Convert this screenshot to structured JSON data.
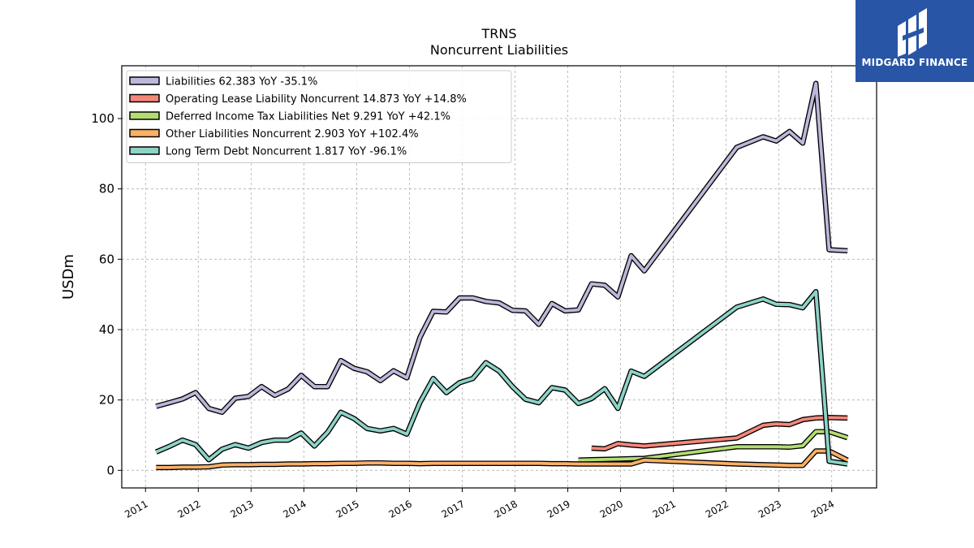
{
  "chart_data": {
    "type": "line",
    "title": "TRNS",
    "subtitle": "Noncurrent  Liabilities",
    "ylabel": "USDm",
    "xlabel": "",
    "xlim": [
      2010.55,
      2024.85
    ],
    "ylim": [
      -5,
      115
    ],
    "yticks": [
      0,
      20,
      40,
      60,
      80,
      100
    ],
    "xticks": [
      "2011",
      "2012",
      "2013",
      "2014",
      "2015",
      "2016",
      "2017",
      "2018",
      "2019",
      "2020",
      "2021",
      "2022",
      "2023",
      "2024"
    ],
    "grid": true,
    "legend_position": "top-left",
    "series": [
      {
        "name": "Liabilities  62.383 YoY -35.1%",
        "color": "#bcb8db",
        "x": [
          2011.2,
          2011.45,
          2011.7,
          2011.95,
          2012.2,
          2012.45,
          2012.7,
          2012.95,
          2013.2,
          2013.45,
          2013.7,
          2013.95,
          2014.2,
          2014.45,
          2014.7,
          2014.95,
          2015.2,
          2015.45,
          2015.7,
          2015.95,
          2016.2,
          2016.45,
          2016.7,
          2016.95,
          2017.2,
          2017.45,
          2017.7,
          2017.95,
          2018.2,
          2018.45,
          2018.7,
          2018.95,
          2019.2,
          2019.45,
          2019.7,
          2019.95,
          2020.2,
          2020.45,
          2022.2,
          2022.7,
          2022.95,
          2023.2,
          2023.45,
          2023.7,
          2023.95,
          2024.3
        ],
        "y": [
          18.2,
          19.2,
          20.3,
          22.1,
          17.6,
          16.5,
          20.5,
          21,
          23.8,
          21.3,
          23.1,
          27,
          23.8,
          23.8,
          31.2,
          29,
          28,
          25.5,
          28.3,
          26.3,
          37.8,
          45.2,
          45,
          49,
          49,
          48,
          47.6,
          45.5,
          45.3,
          41.5,
          47.4,
          45.3,
          45.6,
          53,
          52.6,
          49.3,
          61,
          56.7,
          91.8,
          94.8,
          93.6,
          96.3,
          93,
          110,
          62.7,
          62.4
        ]
      },
      {
        "name": "Operating Lease Liability Noncurrent  14.873 YoY +14.8%",
        "color": "#f5867a",
        "x": [
          2019.45,
          2019.7,
          2019.95,
          2020.2,
          2020.45,
          2022.2,
          2022.7,
          2022.95,
          2023.2,
          2023.45,
          2023.7,
          2023.95,
          2024.3
        ],
        "y": [
          6.3,
          6.1,
          7.6,
          7.2,
          6.9,
          9.2,
          12.8,
          13.2,
          13,
          14.4,
          14.9,
          15,
          14.87
        ]
      },
      {
        "name": "Deferred Income Tax Liabilities Net  9.291 YoY +42.1%",
        "color": "#b3dd72",
        "x": [
          2019.2,
          2019.45,
          2019.7,
          2019.95,
          2020.2,
          2020.45,
          2022.2,
          2022.7,
          2022.95,
          2023.2,
          2023.45,
          2023.7,
          2023.95,
          2024.3
        ],
        "y": [
          2.9,
          3,
          3.1,
          3.2,
          3.3,
          3.4,
          6.7,
          6.7,
          6.7,
          6.6,
          7,
          11,
          11,
          9.29
        ]
      },
      {
        "name": "Other Liabilities Noncurrent  2.903 YoY +102.4%",
        "color": "#f9b067",
        "x": [
          2011.2,
          2011.45,
          2011.7,
          2011.95,
          2012.2,
          2012.45,
          2012.7,
          2012.95,
          2013.2,
          2013.45,
          2013.7,
          2013.95,
          2014.2,
          2014.45,
          2014.7,
          2014.95,
          2015.2,
          2015.45,
          2015.7,
          2015.95,
          2016.2,
          2016.45,
          2016.7,
          2016.95,
          2017.2,
          2017.45,
          2017.7,
          2017.95,
          2018.2,
          2018.45,
          2018.7,
          2018.95,
          2019.2,
          2019.45,
          2019.7,
          2019.95,
          2020.2,
          2020.45,
          2022.2,
          2022.7,
          2022.95,
          2023.2,
          2023.45,
          2023.7,
          2023.95,
          2024.3
        ],
        "y": [
          0.8,
          0.8,
          0.9,
          0.9,
          1,
          1.5,
          1.6,
          1.6,
          1.7,
          1.7,
          1.8,
          1.8,
          1.9,
          1.9,
          2,
          2,
          2.1,
          2.1,
          2,
          2,
          1.9,
          2,
          2,
          2,
          2,
          2,
          2,
          2,
          2,
          2,
          1.9,
          1.9,
          1.8,
          1.8,
          1.8,
          1.8,
          1.8,
          2.9,
          1.8,
          1.6,
          1.5,
          1.4,
          1.4,
          5.5,
          5.5,
          2.9
        ]
      },
      {
        "name": "Long Term Debt Noncurrent  1.817 YoY -96.1%",
        "color": "#8dd3c7",
        "x": [
          2011.2,
          2011.45,
          2011.7,
          2011.95,
          2012.2,
          2012.45,
          2012.7,
          2012.95,
          2013.2,
          2013.45,
          2013.7,
          2013.95,
          2014.2,
          2014.45,
          2014.7,
          2014.95,
          2015.2,
          2015.45,
          2015.7,
          2015.95,
          2016.2,
          2016.45,
          2016.7,
          2016.95,
          2017.2,
          2017.45,
          2017.7,
          2017.95,
          2018.2,
          2018.45,
          2018.7,
          2018.95,
          2019.2,
          2019.45,
          2019.7,
          2019.95,
          2020.2,
          2020.45,
          2022.2,
          2022.7,
          2022.95,
          2023.2,
          2023.45,
          2023.7,
          2023.95,
          2024.3
        ],
        "y": [
          5.2,
          6.8,
          8.6,
          7.3,
          3,
          6,
          7.3,
          6.3,
          7.9,
          8.6,
          8.6,
          10.6,
          6.9,
          10.8,
          16.5,
          14.7,
          11.9,
          11.2,
          11.9,
          10.3,
          19.3,
          26.1,
          22.1,
          24.9,
          26.1,
          30.6,
          28.2,
          23.8,
          20.2,
          19.2,
          23.5,
          22.8,
          19,
          20.4,
          23.2,
          17.6,
          28.2,
          26.7,
          46.4,
          48.7,
          47.2,
          47.1,
          46.2,
          50.8,
          2.6,
          1.8
        ]
      }
    ]
  },
  "logo": {
    "text": "MIDGARD FINANCE"
  }
}
